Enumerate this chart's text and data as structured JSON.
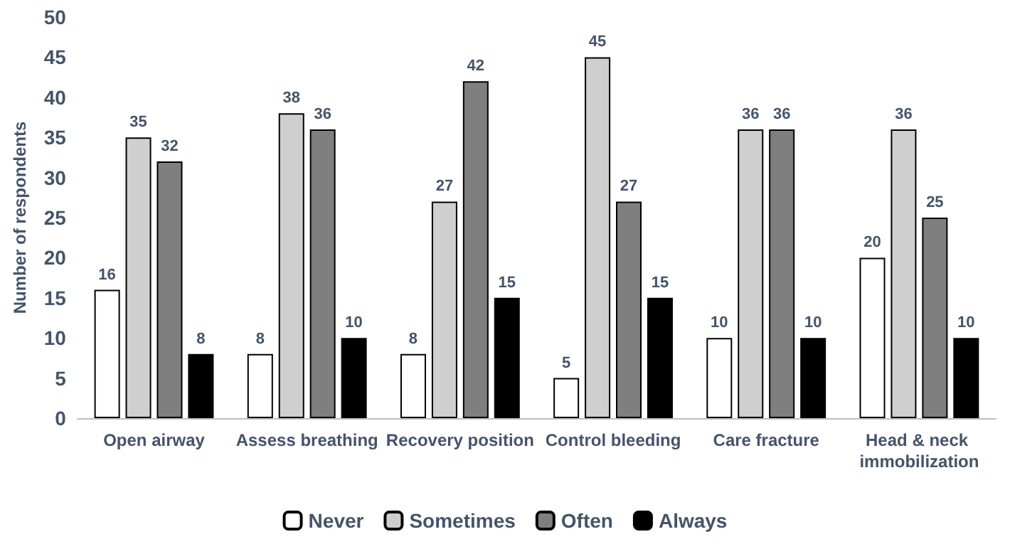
{
  "chart_data": {
    "type": "bar",
    "ylabel": "Number of respondents",
    "categories": [
      "Open airway",
      "Assess breathing",
      "Recovery position",
      "Control bleeding",
      "Care fracture",
      "Head & neck immobilization"
    ],
    "series": [
      {
        "name": "Never",
        "color": "#ffffff",
        "values": [
          16,
          8,
          8,
          5,
          10,
          20
        ]
      },
      {
        "name": "Sometimes",
        "color": "#cfcfcf",
        "values": [
          35,
          38,
          27,
          45,
          36,
          36
        ]
      },
      {
        "name": "Often",
        "color": "#7f7f7f",
        "values": [
          32,
          36,
          42,
          27,
          36,
          25
        ]
      },
      {
        "name": "Always",
        "color": "#000000",
        "values": [
          8,
          10,
          15,
          15,
          10,
          10
        ]
      }
    ],
    "ylim": [
      0,
      50
    ],
    "yticks": [
      0,
      5,
      10,
      15,
      20,
      25,
      30,
      35,
      40,
      45,
      50
    ],
    "grid": false,
    "legend": "bottom",
    "data_labels": true
  }
}
